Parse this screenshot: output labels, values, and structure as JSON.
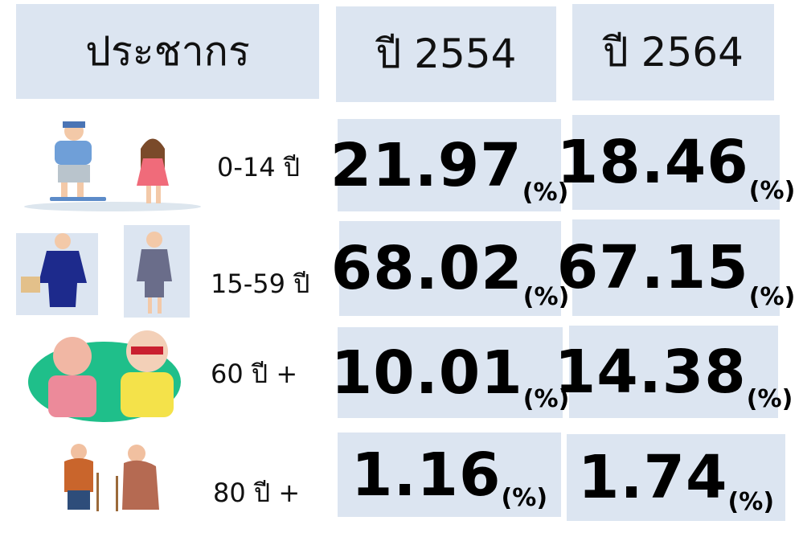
{
  "table": {
    "header": [
      "ประชากร",
      "ปี 2554",
      "ปี 2564"
    ],
    "unit": "(%)",
    "rows": [
      [
        "0-14 ปี",
        "21.97",
        "18.46"
      ],
      [
        "15-59 ปี",
        "68.02",
        "67.15"
      ],
      [
        "60 ปี +",
        "10.01",
        "14.38"
      ],
      [
        "80 ปี +",
        "1.16",
        "1.74"
      ]
    ]
  }
}
